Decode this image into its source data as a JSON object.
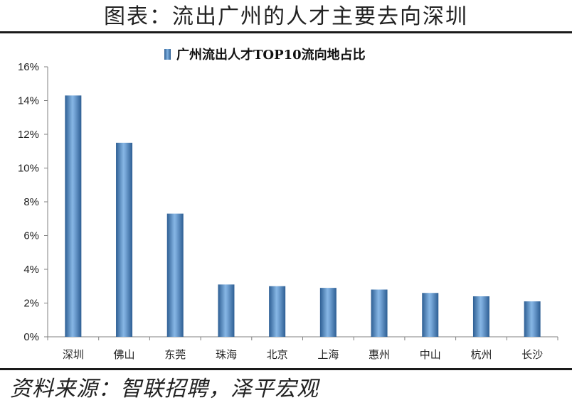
{
  "figure": {
    "title": "图表：流出广州的人才主要去向深圳",
    "source": "资料来源：智联招聘，泽平宏观"
  },
  "chart_data": {
    "type": "bar",
    "series": [
      {
        "name": "广州流出人才TOP10流向地占比",
        "values": [
          14.3,
          11.5,
          7.3,
          3.1,
          3.0,
          2.9,
          2.8,
          2.6,
          2.4,
          2.1
        ]
      }
    ],
    "categories": [
      "深圳",
      "佛山",
      "东莞",
      "珠海",
      "北京",
      "上海",
      "惠州",
      "中山",
      "杭州",
      "长沙"
    ],
    "ylim": [
      0,
      16
    ],
    "yticks": [
      0,
      2,
      4,
      6,
      8,
      10,
      12,
      14,
      16
    ],
    "ytick_labels": [
      "0%",
      "2%",
      "4%",
      "6%",
      "8%",
      "10%",
      "12%",
      "14%",
      "16%"
    ],
    "legend_position": "top-center",
    "grid": false,
    "bar_color": "#4f81bd"
  }
}
